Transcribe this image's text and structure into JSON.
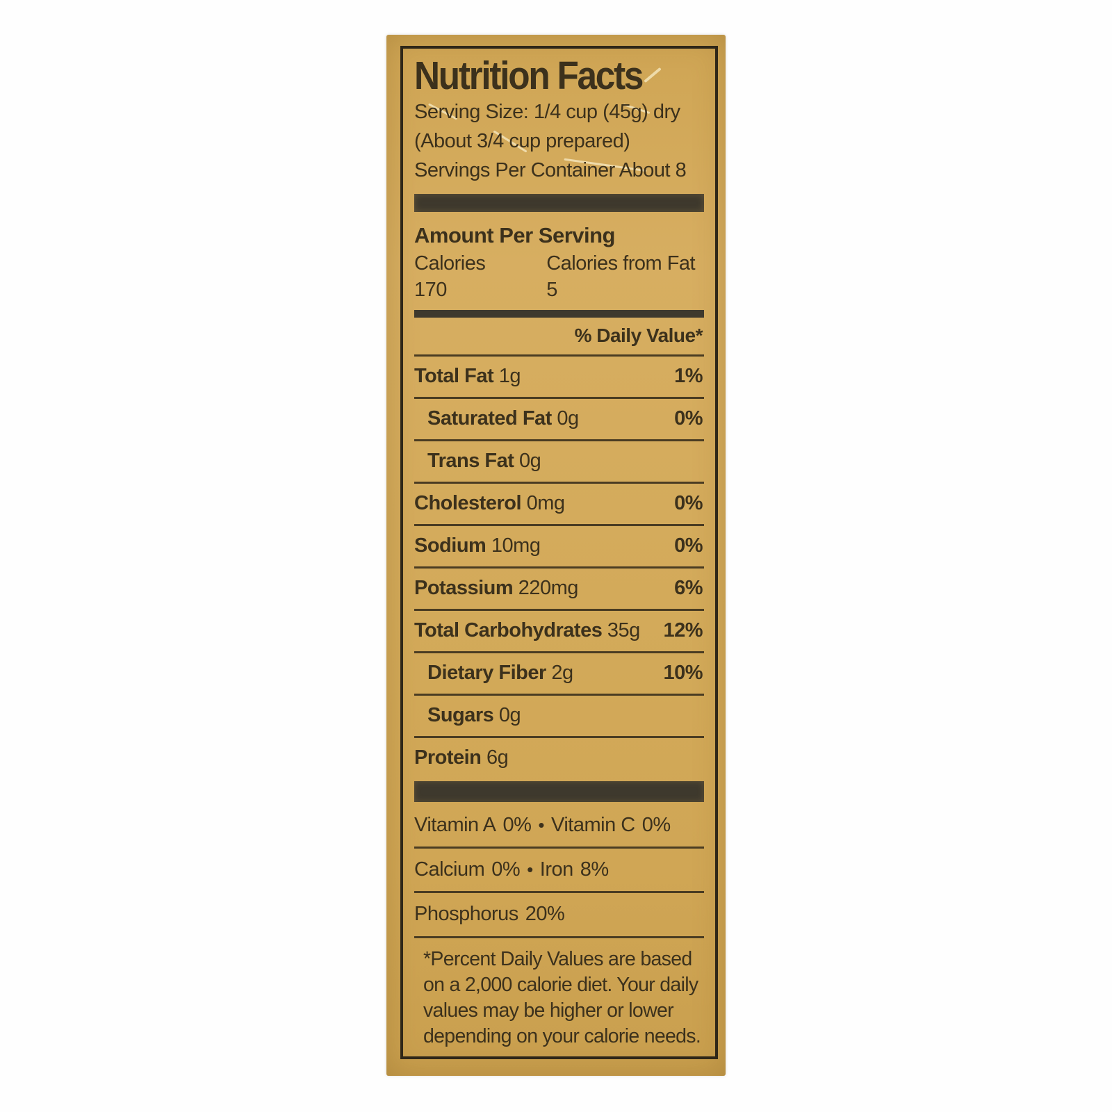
{
  "label": {
    "title": "Nutrition Facts",
    "serving_size": "Serving Size: 1/4 cup (45g) dry",
    "serving_note": "(About 3/4 cup prepared)",
    "servings_per_container": "Servings Per Container About 8",
    "amount_per_serving": "Amount Per Serving",
    "calories": "Calories 170",
    "calories_from_fat": "Calories from Fat  5",
    "daily_value_header": "% Daily Value*",
    "nutrients": [
      {
        "name": "Total Fat",
        "amount": "1g",
        "dv": "1%"
      },
      {
        "name": "Saturated Fat",
        "amount": "0g",
        "dv": "0%"
      },
      {
        "name": "Trans Fat",
        "amount": "0g",
        "dv": ""
      },
      {
        "name": "Cholesterol",
        "amount": "0mg",
        "dv": "0%"
      },
      {
        "name": "Sodium",
        "amount": "10mg",
        "dv": "0%"
      },
      {
        "name": "Potassium",
        "amount": "220mg",
        "dv": "6%"
      },
      {
        "name": "Total Carbohydrates",
        "amount": "35g",
        "dv": "12%"
      },
      {
        "name": "Dietary Fiber",
        "amount": "2g",
        "dv": "10%"
      },
      {
        "name": "Sugars",
        "amount": "0g",
        "dv": ""
      },
      {
        "name": "Protein",
        "amount": "6g",
        "dv": ""
      }
    ],
    "separator": "•",
    "micros": [
      {
        "left_name": "Vitamin A",
        "left_value": "0%",
        "right_name": "Vitamin C",
        "right_value": "0%"
      },
      {
        "left_name": "Calcium",
        "left_value": "0%",
        "right_name": "Iron",
        "right_value": "8%"
      },
      {
        "left_name": "Phosphorus",
        "left_value": "20%"
      }
    ],
    "footnote": "*Percent Daily Values are based on a 2,000 calorie diet. Your daily values may be higher or lower depending on your calorie needs.",
    "colors": {
      "label_bg": "#d3aa5a",
      "text": "#3c311c",
      "bar": "#3e392d"
    }
  }
}
